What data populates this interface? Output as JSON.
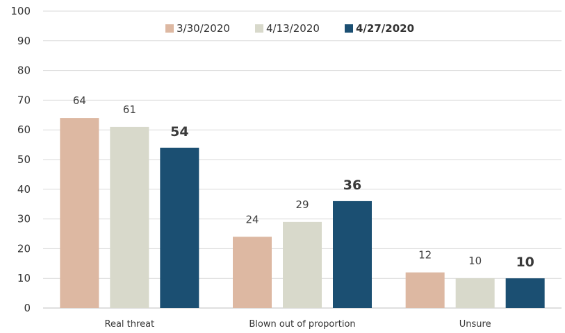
{
  "chart_data": {
    "type": "bar",
    "title": "",
    "xlabel": "",
    "ylabel": "",
    "ylim": [
      0,
      100
    ],
    "yticks": [
      0,
      10,
      20,
      30,
      40,
      50,
      60,
      70,
      80,
      90,
      100
    ],
    "grid": true,
    "legend_position": "top",
    "categories": [
      "Real threat",
      "Blown out of proportion",
      "Unsure"
    ],
    "series": [
      {
        "name": "3/30/2020",
        "values": [
          64,
          24,
          12
        ],
        "color": "#ddb8a2",
        "bold": false
      },
      {
        "name": "4/13/2020",
        "values": [
          61,
          29,
          10
        ],
        "color": "#d8d9cb",
        "bold": false
      },
      {
        "name": "4/27/2020",
        "values": [
          54,
          36,
          10
        ],
        "color": "#1b4f72",
        "bold": true
      }
    ]
  }
}
